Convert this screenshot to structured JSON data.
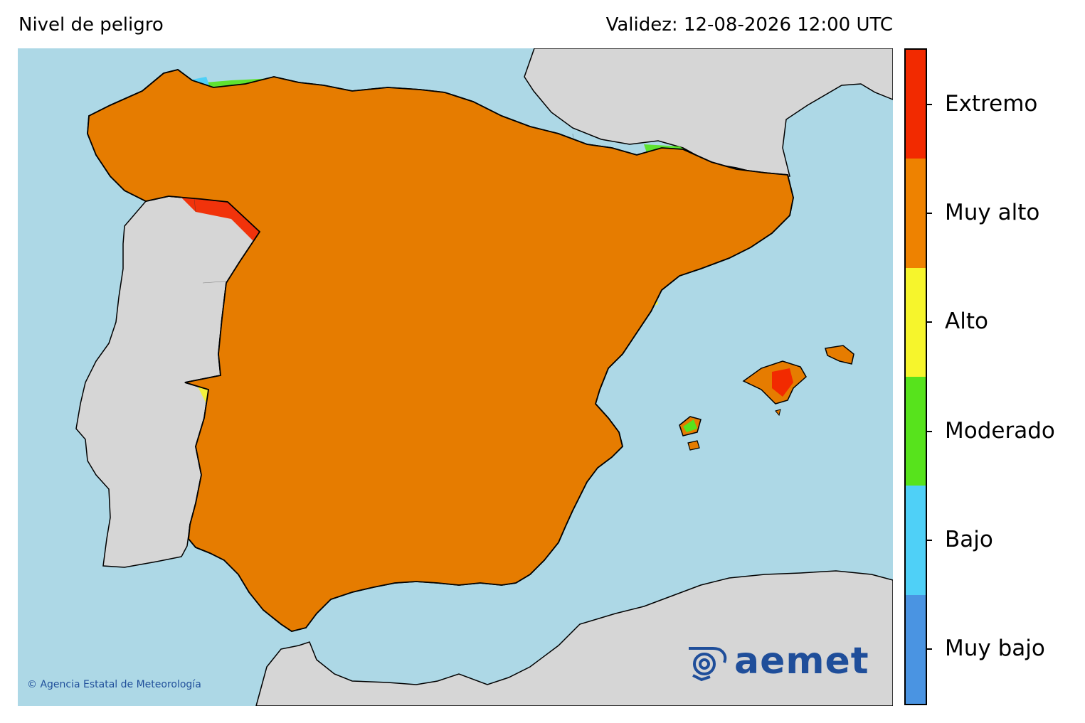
{
  "header": {
    "title_left": "Nivel de peligro",
    "title_right": "Validez: 12-08-2026 12:00 UTC"
  },
  "credit": "© Agencia Estatal de Meteorología",
  "logo_text": "aemet",
  "legend": [
    {
      "label": "Extremo",
      "color": "#f22a00"
    },
    {
      "label": "Muy alto",
      "color": "#ee8200"
    },
    {
      "label": "Alto",
      "color": "#f6f52c"
    },
    {
      "label": "Moderado",
      "color": "#57e31c"
    },
    {
      "label": "Bajo",
      "color": "#4fd0f7"
    },
    {
      "label": "Muy bajo",
      "color": "#4a94e2"
    }
  ],
  "colors": {
    "sea": "#add8e6",
    "land_other": "#d6d6d6",
    "coast": "#000000"
  }
}
